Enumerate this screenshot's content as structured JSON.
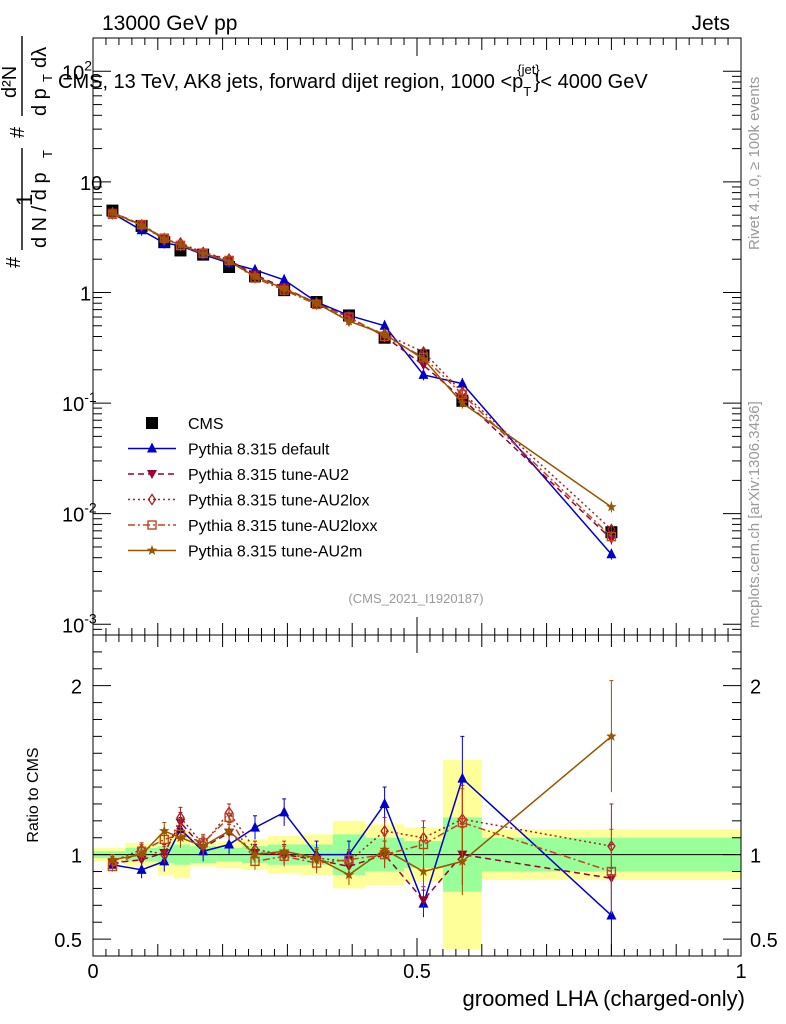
{
  "header": {
    "left": "13000 GeV pp",
    "right": "Jets"
  },
  "plot": {
    "title": "CMS, 13 TeV, AK8 jets, forward dijet region, 1000 <p",
    "title_sub": "T",
    "title_sup": "{jet}",
    "title_end": "}< 4000 GeV",
    "analysis_tag": "(CMS_2021_I1920187)",
    "side_label_top": "Rivet 4.1.0, ≥ 100k events",
    "side_label_bottom": "mcplots.cern.ch [arXiv:1306.3436]",
    "ylabel_parts": [
      "#",
      "1",
      "d N / d p",
      "T",
      "#",
      "d²N",
      "d p",
      "T",
      "dλ"
    ],
    "ratio_ylabel": "Ratio to CMS",
    "xlabel": "groomed LHA (charged-only)"
  },
  "chart_data": {
    "type": "line",
    "x": [
      0.0333,
      0.0767,
      0.1167,
      0.1567,
      0.1733,
      0.2133,
      0.2533,
      0.2967,
      0.3467,
      0.3967,
      0.4533,
      0.51,
      0.5667,
      0.8
    ],
    "x_display_centers": [
      0.03,
      0.075,
      0.11,
      0.135,
      0.17,
      0.21,
      0.25,
      0.295,
      0.345,
      0.395,
      0.45,
      0.51,
      0.57,
      0.8
    ],
    "xlim": [
      0,
      1
    ],
    "x_ticks": [
      "0",
      "0.5",
      "1"
    ],
    "main_yscale": "log",
    "main_ylim": [
      0.0008,
      200
    ],
    "main_y_ticks": [
      {
        "value": 0.001,
        "label": "10",
        "sup": "-3"
      },
      {
        "value": 0.01,
        "label": "10",
        "sup": "-2"
      },
      {
        "value": 0.1,
        "label": "10",
        "sup": "-1"
      },
      {
        "value": 1,
        "label": "1",
        "sup": ""
      },
      {
        "value": 10,
        "label": "10",
        "sup": ""
      },
      {
        "value": 100,
        "label": "10",
        "sup": "2"
      }
    ],
    "ratio_ylim": [
      0.4,
      2.3
    ],
    "ratio_y_ticks": [
      {
        "value": 0.5,
        "label": "0.5"
      },
      {
        "value": 1,
        "label": "1"
      },
      {
        "value": 2,
        "label": "2"
      }
    ],
    "bins": [
      {
        "lo": 0.0,
        "hi": 0.05,
        "stat": 0.02,
        "tot": 0.04
      },
      {
        "lo": 0.05,
        "hi": 0.1,
        "stat": 0.04,
        "tot": 0.07
      },
      {
        "lo": 0.1,
        "hi": 0.125,
        "stat": 0.05,
        "tot": 0.12
      },
      {
        "lo": 0.125,
        "hi": 0.15,
        "stat": 0.06,
        "tot": 0.14
      },
      {
        "lo": 0.15,
        "hi": 0.19,
        "stat": 0.05,
        "tot": 0.07
      },
      {
        "lo": 0.19,
        "hi": 0.23,
        "stat": 0.04,
        "tot": 0.08
      },
      {
        "lo": 0.23,
        "hi": 0.27,
        "stat": 0.05,
        "tot": 0.09
      },
      {
        "lo": 0.27,
        "hi": 0.32,
        "stat": 0.06,
        "tot": 0.11
      },
      {
        "lo": 0.32,
        "hi": 0.37,
        "stat": 0.06,
        "tot": 0.12
      },
      {
        "lo": 0.37,
        "hi": 0.42,
        "stat": 0.12,
        "tot": 0.2
      },
      {
        "lo": 0.42,
        "hi": 0.48,
        "stat": 0.1,
        "tot": 0.18
      },
      {
        "lo": 0.48,
        "hi": 0.54,
        "stat": 0.08,
        "tot": 0.16
      },
      {
        "lo": 0.54,
        "hi": 0.6,
        "stat": 0.22,
        "tot": 0.56
      },
      {
        "lo": 0.6,
        "hi": 1.0,
        "stat": 0.1,
        "tot": 0.15
      }
    ],
    "series": [
      {
        "name": "CMS",
        "color": "#000000",
        "marker": "square",
        "dash": "",
        "values": [
          5.5,
          4.0,
          2.85,
          2.4,
          2.2,
          1.7,
          1.4,
          1.05,
          0.82,
          0.62,
          0.39,
          0.27,
          0.105,
          0.0068
        ]
      },
      {
        "name": "Pythia 8.315 default",
        "color": "#0000cc",
        "marker": "triangle-up",
        "dash": "",
        "values": [
          5.2,
          3.65,
          2.8,
          2.65,
          2.2,
          1.85,
          1.6,
          1.3,
          0.82,
          0.62,
          0.5,
          0.18,
          0.15,
          0.0043
        ],
        "ratio": [
          0.94,
          0.91,
          0.96,
          1.15,
          1.02,
          1.06,
          1.16,
          1.25,
          1.0,
          1.0,
          1.3,
          0.71,
          1.45,
          0.64
        ],
        "ratio_err": [
          0.04,
          0.05,
          0.06,
          0.07,
          0.06,
          0.06,
          0.07,
          0.08,
          0.08,
          0.08,
          0.1,
          0.08,
          0.25,
          0.28
        ]
      },
      {
        "name": "Pythia 8.315 tune-AU2",
        "color": "#990033",
        "marker": "triangle-down",
        "dash": "6,4",
        "values": [
          5.3,
          4.1,
          3.05,
          2.7,
          2.3,
          1.95,
          1.45,
          1.1,
          0.8,
          0.6,
          0.4,
          0.22,
          0.11,
          0.0059
        ],
        "ratio": [
          0.95,
          0.97,
          1.01,
          1.19,
          1.04,
          1.13,
          1.01,
          1.0,
          0.97,
          0.93,
          1.0,
          0.73,
          1.0,
          0.86
        ],
        "ratio_err": [
          0.03,
          0.04,
          0.05,
          0.06,
          0.05,
          0.05,
          0.05,
          0.06,
          0.06,
          0.06,
          0.08,
          0.08,
          0.18,
          0.2
        ]
      },
      {
        "name": "Pythia 8.315 tune-AU2lox",
        "color": "#aa2222",
        "marker": "diamond",
        "dash": "2,3",
        "values": [
          5.2,
          4.05,
          3.0,
          2.8,
          2.3,
          2.0,
          1.4,
          1.08,
          0.8,
          0.56,
          0.42,
          0.29,
          0.125,
          0.0072
        ],
        "ratio": [
          0.96,
          1.03,
          1.0,
          1.22,
          1.06,
          1.25,
          1.03,
          1.0,
          0.98,
          0.96,
          1.14,
          1.1,
          1.21,
          1.05
        ],
        "ratio_err": [
          0.03,
          0.04,
          0.05,
          0.06,
          0.05,
          0.05,
          0.05,
          0.06,
          0.06,
          0.06,
          0.08,
          0.1,
          0.2,
          0.25
        ]
      },
      {
        "name": "Pythia 8.315 tune-AU2loxx",
        "color": "#c0461c",
        "marker": "square-open",
        "dash": "7,3,2,3",
        "values": [
          5.1,
          4.1,
          3.1,
          2.65,
          2.25,
          1.95,
          1.35,
          1.05,
          0.78,
          0.6,
          0.4,
          0.26,
          0.12,
          0.0062
        ],
        "ratio": [
          0.93,
          1.02,
          1.09,
          1.12,
          1.07,
          1.22,
          0.96,
          0.99,
          0.95,
          0.97,
          1.0,
          1.06,
          1.19,
          0.9
        ],
        "ratio_err": [
          0.03,
          0.04,
          0.05,
          0.06,
          0.05,
          0.05,
          0.05,
          0.06,
          0.06,
          0.06,
          0.08,
          0.1,
          0.2,
          0.25
        ]
      },
      {
        "name": "Pythia 8.315 tune-AU2m",
        "color": "#995500",
        "marker": "star",
        "dash": "",
        "values": [
          5.3,
          4.05,
          3.05,
          2.7,
          2.25,
          1.9,
          1.4,
          1.08,
          0.8,
          0.55,
          0.42,
          0.25,
          0.1,
          0.0115
        ],
        "ratio": [
          0.97,
          1.0,
          1.14,
          1.1,
          1.05,
          1.14,
          1.0,
          1.02,
          0.98,
          0.88,
          1.03,
          0.9,
          0.96,
          1.7
        ],
        "ratio_err": [
          0.03,
          0.04,
          0.05,
          0.06,
          0.05,
          0.05,
          0.05,
          0.06,
          0.06,
          0.06,
          0.08,
          0.1,
          0.2,
          0.33
        ]
      }
    ],
    "colors": {
      "band_inner": "#99ff99",
      "band_outer": "#ffff99"
    }
  }
}
